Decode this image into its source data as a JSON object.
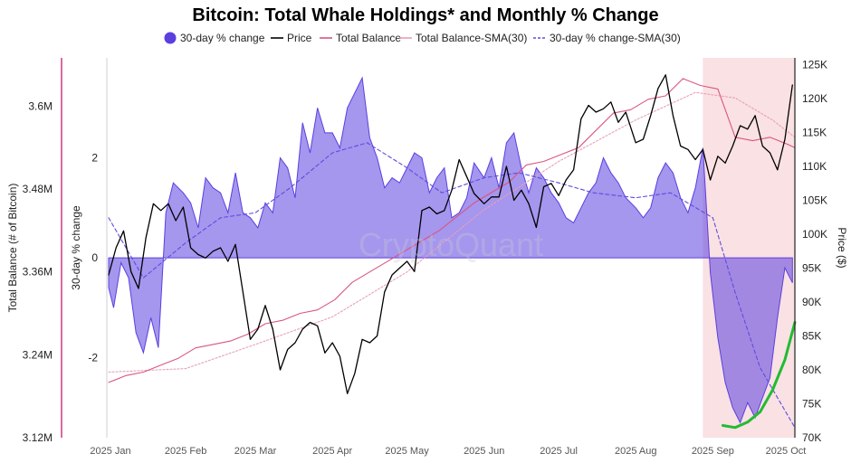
{
  "chart_data": {
    "type": "area",
    "title": "Bitcoin: Total Whale Holdings* and Monthly % Change",
    "watermark": "CryptoQuant",
    "legend_position": "top",
    "grid": false,
    "x_ticks": [
      "2025 Jan",
      "2025 Feb",
      "2025 Mar",
      "2025 Apr",
      "2025 May",
      "2025 Jun",
      "2025 Jul",
      "2025 Aug",
      "2025 Sep",
      "2025 Oct"
    ],
    "x_range": [
      "2025-01-01",
      "2025-10-04"
    ],
    "axes": {
      "left_outer": {
        "label": "Total Balance (# of Bitcoin)",
        "ticks": [
          "3.6M",
          "3.48M",
          "3.36M",
          "3.24M",
          "3.12M"
        ],
        "min": 3120000,
        "max": 3670000,
        "color": "#cc3b7e"
      },
      "left_inner": {
        "label": "30-day % change",
        "ticks": [
          "2",
          "0",
          "-2"
        ],
        "min": -3.6,
        "max": 4.0
      },
      "right": {
        "label": "Price ($)",
        "ticks": [
          "125K",
          "120K",
          "115K",
          "110K",
          "105K",
          "100K",
          "95K",
          "90K",
          "85K",
          "80K",
          "75K",
          "70K"
        ],
        "min": 70000,
        "max": 126000
      }
    },
    "highlight_region": {
      "from": "2025-08-28",
      "to": "2025-10-04",
      "color": "#f8d7da"
    },
    "series": [
      {
        "name": "30-day % change",
        "kind": "area",
        "color": "#5b3fe0",
        "x": [
          "2025-01-01",
          "2025-01-03",
          "2025-01-06",
          "2025-01-09",
          "2025-01-12",
          "2025-01-15",
          "2025-01-18",
          "2025-01-21",
          "2025-01-24",
          "2025-01-27",
          "2025-01-31",
          "2025-02-03",
          "2025-02-06",
          "2025-02-09",
          "2025-02-12",
          "2025-02-15",
          "2025-02-18",
          "2025-02-21",
          "2025-02-24",
          "2025-02-27",
          "2025-03-02",
          "2025-03-05",
          "2025-03-08",
          "2025-03-11",
          "2025-03-14",
          "2025-03-17",
          "2025-03-20",
          "2025-03-23",
          "2025-03-26",
          "2025-03-29",
          "2025-04-01",
          "2025-04-04",
          "2025-04-07",
          "2025-04-10",
          "2025-04-13",
          "2025-04-16",
          "2025-04-19",
          "2025-04-22",
          "2025-04-25",
          "2025-04-28",
          "2025-05-01",
          "2025-05-04",
          "2025-05-07",
          "2025-05-10",
          "2025-05-13",
          "2025-05-16",
          "2025-05-19",
          "2025-05-22",
          "2025-05-25",
          "2025-05-28",
          "2025-06-01",
          "2025-06-04",
          "2025-06-07",
          "2025-06-10",
          "2025-06-13",
          "2025-06-16",
          "2025-06-19",
          "2025-06-22",
          "2025-06-25",
          "2025-06-28",
          "2025-07-01",
          "2025-07-04",
          "2025-07-07",
          "2025-07-10",
          "2025-07-13",
          "2025-07-16",
          "2025-07-19",
          "2025-07-22",
          "2025-07-25",
          "2025-07-28",
          "2025-08-01",
          "2025-08-04",
          "2025-08-07",
          "2025-08-10",
          "2025-08-13",
          "2025-08-16",
          "2025-08-19",
          "2025-08-22",
          "2025-08-25",
          "2025-08-28",
          "2025-08-31",
          "2025-09-03",
          "2025-09-06",
          "2025-09-09",
          "2025-09-12",
          "2025-09-15",
          "2025-09-18",
          "2025-09-21",
          "2025-09-24",
          "2025-09-27",
          "2025-09-30",
          "2025-10-03"
        ],
        "values": [
          -0.6,
          -1.0,
          -0.1,
          -0.4,
          -1.5,
          -1.9,
          -1.2,
          -1.8,
          0.9,
          1.5,
          1.3,
          1.1,
          0.6,
          1.6,
          1.4,
          1.3,
          0.9,
          1.7,
          0.9,
          0.8,
          0.6,
          1.1,
          0.9,
          2.0,
          1.8,
          1.2,
          2.7,
          2.1,
          3.0,
          2.5,
          2.5,
          2.2,
          3.0,
          3.3,
          3.6,
          2.4,
          2.0,
          1.4,
          1.6,
          1.5,
          1.8,
          2.1,
          2.0,
          1.3,
          1.6,
          1.8,
          0.8,
          0.9,
          1.2,
          1.9,
          1.6,
          2.0,
          1.4,
          2.3,
          2.5,
          1.8,
          1.3,
          1.8,
          1.6,
          1.3,
          1.1,
          0.8,
          0.7,
          1.0,
          1.3,
          1.5,
          2.0,
          1.7,
          1.5,
          1.2,
          1.0,
          0.8,
          1.0,
          1.6,
          1.9,
          1.7,
          1.2,
          0.9,
          1.4,
          2.2,
          -0.3,
          -1.6,
          -2.5,
          -3.0,
          -3.3,
          -2.9,
          -3.2,
          -2.8,
          -2.4,
          -1.2,
          -0.2,
          -0.5
        ]
      },
      {
        "name": "Price",
        "kind": "line",
        "color": "#000000",
        "x": [
          "2025-01-01",
          "2025-01-04",
          "2025-01-07",
          "2025-01-10",
          "2025-01-13",
          "2025-01-16",
          "2025-01-19",
          "2025-01-22",
          "2025-01-25",
          "2025-01-28",
          "2025-01-31",
          "2025-02-03",
          "2025-02-06",
          "2025-02-09",
          "2025-02-12",
          "2025-02-15",
          "2025-02-18",
          "2025-02-21",
          "2025-02-24",
          "2025-02-27",
          "2025-03-02",
          "2025-03-05",
          "2025-03-08",
          "2025-03-11",
          "2025-03-14",
          "2025-03-17",
          "2025-03-20",
          "2025-03-23",
          "2025-03-26",
          "2025-03-29",
          "2025-04-01",
          "2025-04-04",
          "2025-04-07",
          "2025-04-10",
          "2025-04-13",
          "2025-04-16",
          "2025-04-19",
          "2025-04-22",
          "2025-04-25",
          "2025-04-28",
          "2025-05-01",
          "2025-05-04",
          "2025-05-07",
          "2025-05-10",
          "2025-05-13",
          "2025-05-16",
          "2025-05-19",
          "2025-05-22",
          "2025-05-25",
          "2025-05-28",
          "2025-06-01",
          "2025-06-04",
          "2025-06-07",
          "2025-06-10",
          "2025-06-13",
          "2025-06-16",
          "2025-06-19",
          "2025-06-22",
          "2025-06-25",
          "2025-06-28",
          "2025-07-01",
          "2025-07-04",
          "2025-07-07",
          "2025-07-10",
          "2025-07-13",
          "2025-07-16",
          "2025-07-19",
          "2025-07-22",
          "2025-07-25",
          "2025-07-28",
          "2025-08-01",
          "2025-08-04",
          "2025-08-07",
          "2025-08-10",
          "2025-08-13",
          "2025-08-16",
          "2025-08-19",
          "2025-08-22",
          "2025-08-25",
          "2025-08-28",
          "2025-08-31",
          "2025-09-03",
          "2025-09-06",
          "2025-09-09",
          "2025-09-12",
          "2025-09-15",
          "2025-09-18",
          "2025-09-21",
          "2025-09-24",
          "2025-09-27",
          "2025-09-30",
          "2025-10-03"
        ],
        "values": [
          94000,
          98000,
          100500,
          94500,
          92000,
          99500,
          104500,
          103500,
          104500,
          102000,
          104000,
          98000,
          97000,
          96500,
          97500,
          98000,
          96000,
          98500,
          91500,
          84500,
          86000,
          89500,
          86000,
          80000,
          83000,
          84000,
          86000,
          87000,
          86500,
          82500,
          84000,
          82000,
          76500,
          79500,
          84500,
          84000,
          85000,
          91500,
          94000,
          95000,
          96000,
          94500,
          103500,
          104000,
          103000,
          103500,
          106500,
          111000,
          108500,
          106000,
          104500,
          105500,
          105500,
          110000,
          105000,
          106500,
          104500,
          101000,
          107000,
          107500,
          105700,
          108000,
          109500,
          117000,
          119000,
          118000,
          118500,
          119500,
          116500,
          118000,
          113500,
          114000,
          117500,
          121500,
          123500,
          117500,
          113000,
          112500,
          111000,
          112500,
          108000,
          111500,
          110500,
          113000,
          116000,
          115500,
          117500,
          113000,
          112000,
          109500,
          114000,
          122000
        ]
      },
      {
        "name": "Total Balance",
        "kind": "line",
        "color": "#d9577f",
        "x": [
          "2025-01-01",
          "2025-01-08",
          "2025-01-15",
          "2025-01-22",
          "2025-01-29",
          "2025-02-05",
          "2025-02-12",
          "2025-02-19",
          "2025-02-26",
          "2025-03-05",
          "2025-03-12",
          "2025-03-19",
          "2025-03-26",
          "2025-04-02",
          "2025-04-09",
          "2025-04-16",
          "2025-04-23",
          "2025-04-30",
          "2025-05-07",
          "2025-05-14",
          "2025-05-21",
          "2025-05-28",
          "2025-06-04",
          "2025-06-11",
          "2025-06-18",
          "2025-06-25",
          "2025-07-02",
          "2025-07-09",
          "2025-07-16",
          "2025-07-23",
          "2025-07-30",
          "2025-08-06",
          "2025-08-13",
          "2025-08-20",
          "2025-08-27",
          "2025-09-03",
          "2025-09-10",
          "2025-09-17",
          "2025-09-24",
          "2025-10-01",
          "2025-10-04"
        ],
        "values": [
          3200000,
          3210000,
          3215000,
          3225000,
          3235000,
          3250000,
          3255000,
          3260000,
          3270000,
          3285000,
          3290000,
          3300000,
          3305000,
          3320000,
          3345000,
          3360000,
          3375000,
          3390000,
          3405000,
          3420000,
          3440000,
          3460000,
          3475000,
          3490000,
          3515000,
          3520000,
          3530000,
          3540000,
          3565000,
          3590000,
          3595000,
          3610000,
          3615000,
          3640000,
          3630000,
          3625000,
          3555000,
          3550000,
          3555000,
          3545000,
          3540000
        ]
      },
      {
        "name": "Total Balance-SMA(30)",
        "kind": "line",
        "color": "#e8a0b6",
        "x": [
          "2025-01-01",
          "2025-02-01",
          "2025-03-01",
          "2025-04-01",
          "2025-05-01",
          "2025-06-01",
          "2025-07-01",
          "2025-08-01",
          "2025-08-25",
          "2025-09-10",
          "2025-09-25",
          "2025-10-04"
        ],
        "values": [
          3215000,
          3220000,
          3255000,
          3295000,
          3360000,
          3450000,
          3520000,
          3580000,
          3620000,
          3612000,
          3580000,
          3555000
        ]
      },
      {
        "name": "30-day % change-SMA(30)",
        "kind": "line",
        "color": "#5b4de0",
        "dashed": true,
        "x": [
          "2025-01-01",
          "2025-01-15",
          "2025-02-01",
          "2025-02-15",
          "2025-03-01",
          "2025-03-15",
          "2025-04-01",
          "2025-04-15",
          "2025-05-01",
          "2025-05-15",
          "2025-06-01",
          "2025-06-15",
          "2025-07-01",
          "2025-07-15",
          "2025-08-01",
          "2025-08-15",
          "2025-09-01",
          "2025-09-10",
          "2025-09-20",
          "2025-10-04"
        ],
        "values": [
          0.8,
          -0.4,
          0.3,
          0.8,
          0.9,
          1.4,
          2.1,
          2.3,
          1.8,
          1.3,
          1.6,
          1.7,
          1.5,
          1.3,
          1.2,
          1.3,
          0.8,
          -0.7,
          -2.2,
          -3.4
        ]
      },
      {
        "name": "trend",
        "kind": "line",
        "color": "#22bb33",
        "legend": false,
        "x": [
          "2025-09-05",
          "2025-09-10",
          "2025-09-15",
          "2025-09-20",
          "2025-09-25",
          "2025-09-30",
          "2025-10-04"
        ],
        "values": [
          71800,
          71500,
          72300,
          73800,
          77000,
          81500,
          87000
        ],
        "axis": "right"
      }
    ]
  }
}
